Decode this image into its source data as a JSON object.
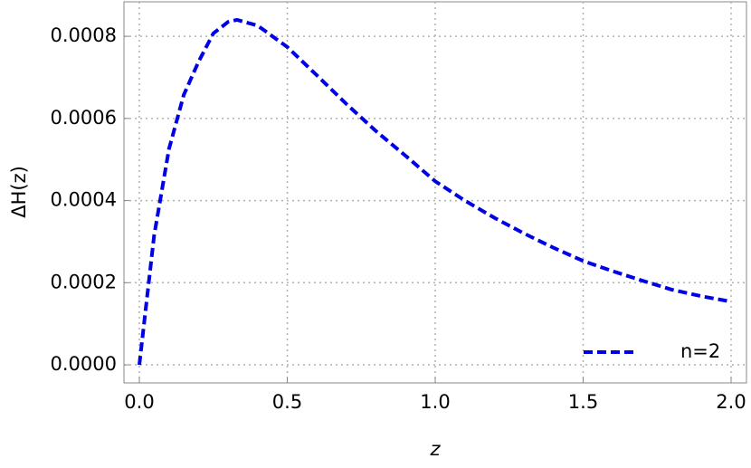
{
  "chart_data": {
    "type": "line",
    "xlabel": "z",
    "ylabel": "ΔH(z)",
    "x": [
      0,
      0.05,
      0.1,
      0.15,
      0.2,
      0.25,
      0.3,
      0.33,
      0.4,
      0.5,
      0.6,
      0.7,
      0.8,
      0.9,
      1.0,
      1.1,
      1.2,
      1.3,
      1.4,
      1.5,
      1.6,
      1.7,
      1.8,
      1.9,
      2.0
    ],
    "series": [
      {
        "name": "n=2",
        "color": "#0000e6",
        "values": [
          0,
          0.000315,
          0.000525,
          0.000657,
          0.000738,
          0.000807,
          0.000835,
          0.00084,
          0.000826,
          0.000774,
          0.000705,
          0.000635,
          0.000569,
          0.000509,
          0.000447,
          0.0004,
          0.000358,
          0.00032,
          0.000285,
          0.000253,
          0.000228,
          0.000205,
          0.000183,
          0.000167,
          0.000154
        ]
      }
    ],
    "xlim": [
      -0.052,
      2.052
    ],
    "ylim": [
      -4.4e-05,
      0.000884
    ],
    "xticks": [
      {
        "value": 0,
        "label": "0.0"
      },
      0.5,
      {
        "value": 1,
        "label": "1.0"
      },
      1.5,
      {
        "value": 2,
        "label": "2.0"
      }
    ],
    "yticks": [
      {
        "value": 0,
        "label": "0.0000"
      },
      {
        "value": 0.0002,
        "label": "0.0002"
      },
      {
        "value": 0.0004,
        "label": "0.0004"
      },
      {
        "value": 0.0006,
        "label": "0.0006"
      },
      {
        "value": 0.0008,
        "label": "0.0008"
      }
    ],
    "grid": true,
    "legend": "lower right"
  }
}
